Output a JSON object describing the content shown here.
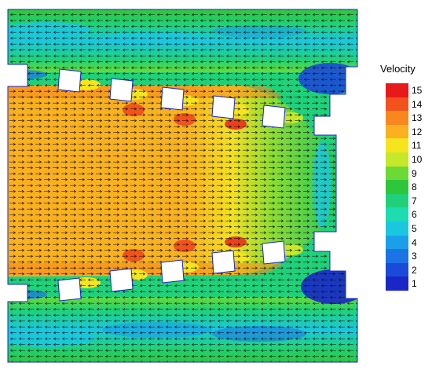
{
  "legend": {
    "title": "Velocity",
    "levels": [
      {
        "label": "15",
        "color": "#e8191a"
      },
      {
        "label": "14",
        "color": "#f2531d"
      },
      {
        "label": "13",
        "color": "#f8881e"
      },
      {
        "label": "12",
        "color": "#fbb01f"
      },
      {
        "label": "11",
        "color": "#f6e51d"
      },
      {
        "label": "10",
        "color": "#c6e82a"
      },
      {
        "label": "9",
        "color": "#6cd934"
      },
      {
        "label": "8",
        "color": "#2ec63b"
      },
      {
        "label": "7",
        "color": "#1fd27a"
      },
      {
        "label": "6",
        "color": "#1cdcb0"
      },
      {
        "label": "5",
        "color": "#1bc7df"
      },
      {
        "label": "4",
        "color": "#1b9fe8"
      },
      {
        "label": "3",
        "color": "#1b73e4"
      },
      {
        "label": "2",
        "color": "#1a4ad8"
      },
      {
        "label": "1",
        "color": "#1a26c8"
      }
    ]
  }
}
